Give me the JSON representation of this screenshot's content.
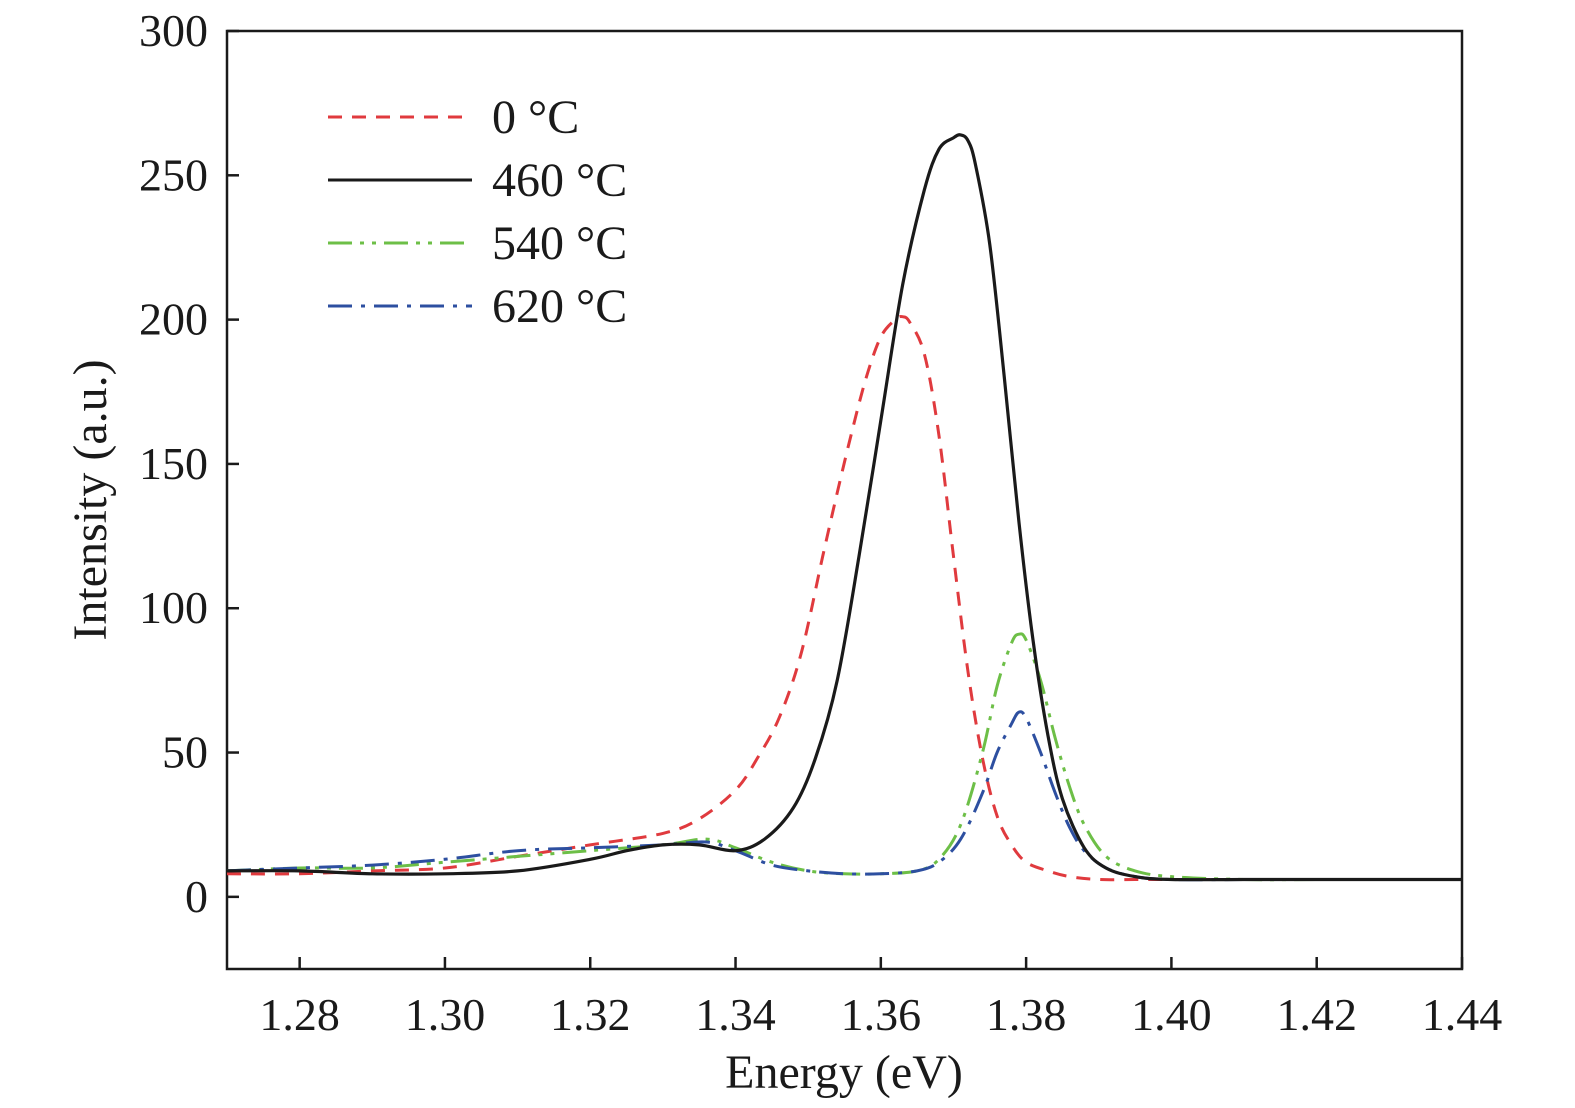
{
  "chart_data": {
    "type": "line",
    "title": "",
    "xlabel": "Energy (eV)",
    "ylabel": "Intensity (a.u.)",
    "xlim": [
      1.27,
      1.44
    ],
    "ylim": [
      -25,
      300
    ],
    "xticks": [
      1.28,
      1.3,
      1.32,
      1.34,
      1.36,
      1.38,
      1.4,
      1.42,
      1.44
    ],
    "xtick_labels": [
      "1.28",
      "1.30",
      "1.32",
      "1.34",
      "1.36",
      "1.38",
      "1.40",
      "1.42",
      "1.44"
    ],
    "yticks": [
      0,
      50,
      100,
      150,
      200,
      250,
      300
    ],
    "ytick_labels": [
      "0",
      "50",
      "100",
      "150",
      "200",
      "250",
      "300"
    ],
    "grid": false,
    "legend_position": "top-left",
    "series": [
      {
        "name": "0 °C",
        "color": "#e03a3e",
        "dash": "dashed",
        "x": [
          1.27,
          1.28,
          1.29,
          1.3,
          1.31,
          1.32,
          1.33,
          1.335,
          1.34,
          1.343,
          1.346,
          1.349,
          1.352,
          1.354,
          1.356,
          1.358,
          1.36,
          1.362,
          1.363,
          1.364,
          1.366,
          1.368,
          1.37,
          1.372,
          1.374,
          1.376,
          1.378,
          1.38,
          1.383,
          1.386,
          1.39,
          1.395,
          1.4,
          1.41,
          1.42,
          1.44
        ],
        "y": [
          8,
          8,
          9,
          10,
          14,
          18,
          22,
          27,
          37,
          48,
          62,
          84,
          118,
          140,
          161,
          180,
          194,
          200,
          201,
          199,
          188,
          160,
          118,
          78,
          48,
          28,
          18,
          12,
          9,
          7,
          6,
          6,
          6,
          6,
          6,
          6
        ]
      },
      {
        "name": "460 °C",
        "color": "#1a1a1a",
        "dash": "solid",
        "x": [
          1.27,
          1.28,
          1.29,
          1.3,
          1.31,
          1.32,
          1.325,
          1.33,
          1.335,
          1.34,
          1.344,
          1.348,
          1.351,
          1.354,
          1.357,
          1.36,
          1.363,
          1.366,
          1.368,
          1.37,
          1.371,
          1.372,
          1.373,
          1.375,
          1.377,
          1.379,
          1.381,
          1.383,
          1.385,
          1.388,
          1.391,
          1.395,
          1.4,
          1.41,
          1.42,
          1.44
        ],
        "y": [
          9,
          9,
          8,
          8,
          9,
          13,
          16,
          18,
          18,
          16,
          20,
          31,
          48,
          75,
          118,
          165,
          212,
          245,
          259,
          263,
          264,
          262,
          254,
          226,
          180,
          130,
          88,
          56,
          34,
          17,
          10,
          7,
          6,
          6,
          6,
          6
        ]
      },
      {
        "name": "540 °C",
        "color": "#6dbf47",
        "dash": "dashdotdot",
        "x": [
          1.27,
          1.28,
          1.29,
          1.3,
          1.31,
          1.32,
          1.33,
          1.336,
          1.34,
          1.345,
          1.35,
          1.355,
          1.36,
          1.365,
          1.368,
          1.371,
          1.374,
          1.376,
          1.378,
          1.379,
          1.38,
          1.382,
          1.384,
          1.386,
          1.388,
          1.391,
          1.395,
          1.4,
          1.41,
          1.42,
          1.44
        ],
        "y": [
          9,
          10,
          10,
          12,
          14,
          16,
          18,
          20,
          17,
          12,
          9,
          8,
          8,
          9,
          13,
          25,
          50,
          73,
          88,
          91,
          89,
          75,
          55,
          38,
          25,
          14,
          9,
          7,
          6,
          6,
          6
        ]
      },
      {
        "name": "620 °C",
        "color": "#2d4fa0",
        "dash": "dashdot",
        "x": [
          1.27,
          1.28,
          1.29,
          1.3,
          1.31,
          1.32,
          1.33,
          1.336,
          1.34,
          1.345,
          1.35,
          1.355,
          1.36,
          1.365,
          1.368,
          1.371,
          1.374,
          1.376,
          1.378,
          1.379,
          1.38,
          1.382,
          1.384,
          1.386,
          1.388,
          1.391,
          1.395,
          1.4,
          1.41,
          1.42,
          1.44
        ],
        "y": [
          9,
          10,
          11,
          13,
          16,
          17,
          18,
          19,
          16,
          11,
          9,
          8,
          8,
          9,
          12,
          20,
          36,
          50,
          60,
          64,
          62,
          50,
          36,
          24,
          16,
          10,
          7,
          6,
          6,
          6,
          6
        ]
      }
    ]
  }
}
